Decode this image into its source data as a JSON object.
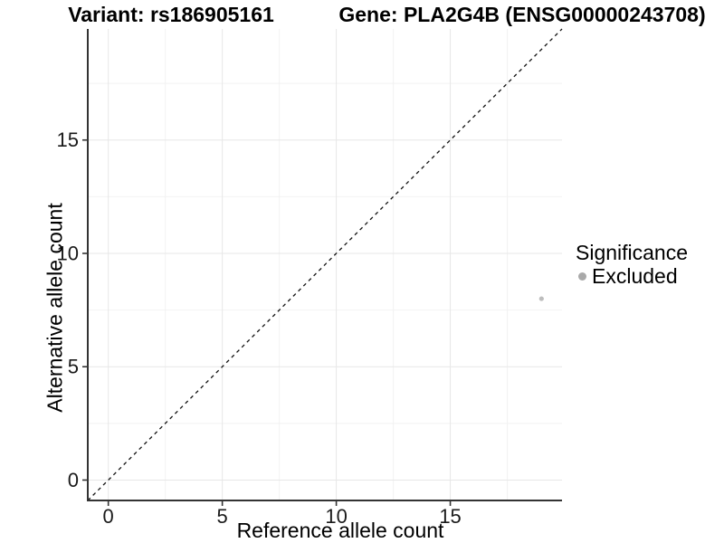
{
  "chart_data": {
    "type": "scatter",
    "title_left": "Variant: rs186905161",
    "title_right": "Gene: PLA2G4B (ENSG00000243708)",
    "xlabel": "Reference allele count",
    "ylabel": "Alternative allele count",
    "xlim": [
      -0.9,
      19.9
    ],
    "ylim": [
      -0.9,
      19.9
    ],
    "x_ticks": [
      0,
      5,
      10,
      15
    ],
    "y_ticks": [
      0,
      5,
      10,
      15
    ],
    "grid": {
      "step": 2.5,
      "major_every": 5,
      "visible": true
    },
    "identity_line": {
      "style": "dashed",
      "equation": "y = x"
    },
    "series": [
      {
        "name": "Excluded",
        "color": "#bdbdbd",
        "points": [
          {
            "x": 19,
            "y": 8
          }
        ]
      }
    ],
    "legend": {
      "title": "Significance",
      "position": "right",
      "items": [
        {
          "label": "Excluded",
          "color": "#a9a9a9"
        }
      ]
    }
  },
  "colors": {
    "background": "#ffffff",
    "axis_line": "#333333",
    "tick_mark": "#333333",
    "grid_major": "#e7e7e7",
    "grid_minor": "#f2f2f2",
    "identity_line": "#111111",
    "text": "#000000"
  }
}
